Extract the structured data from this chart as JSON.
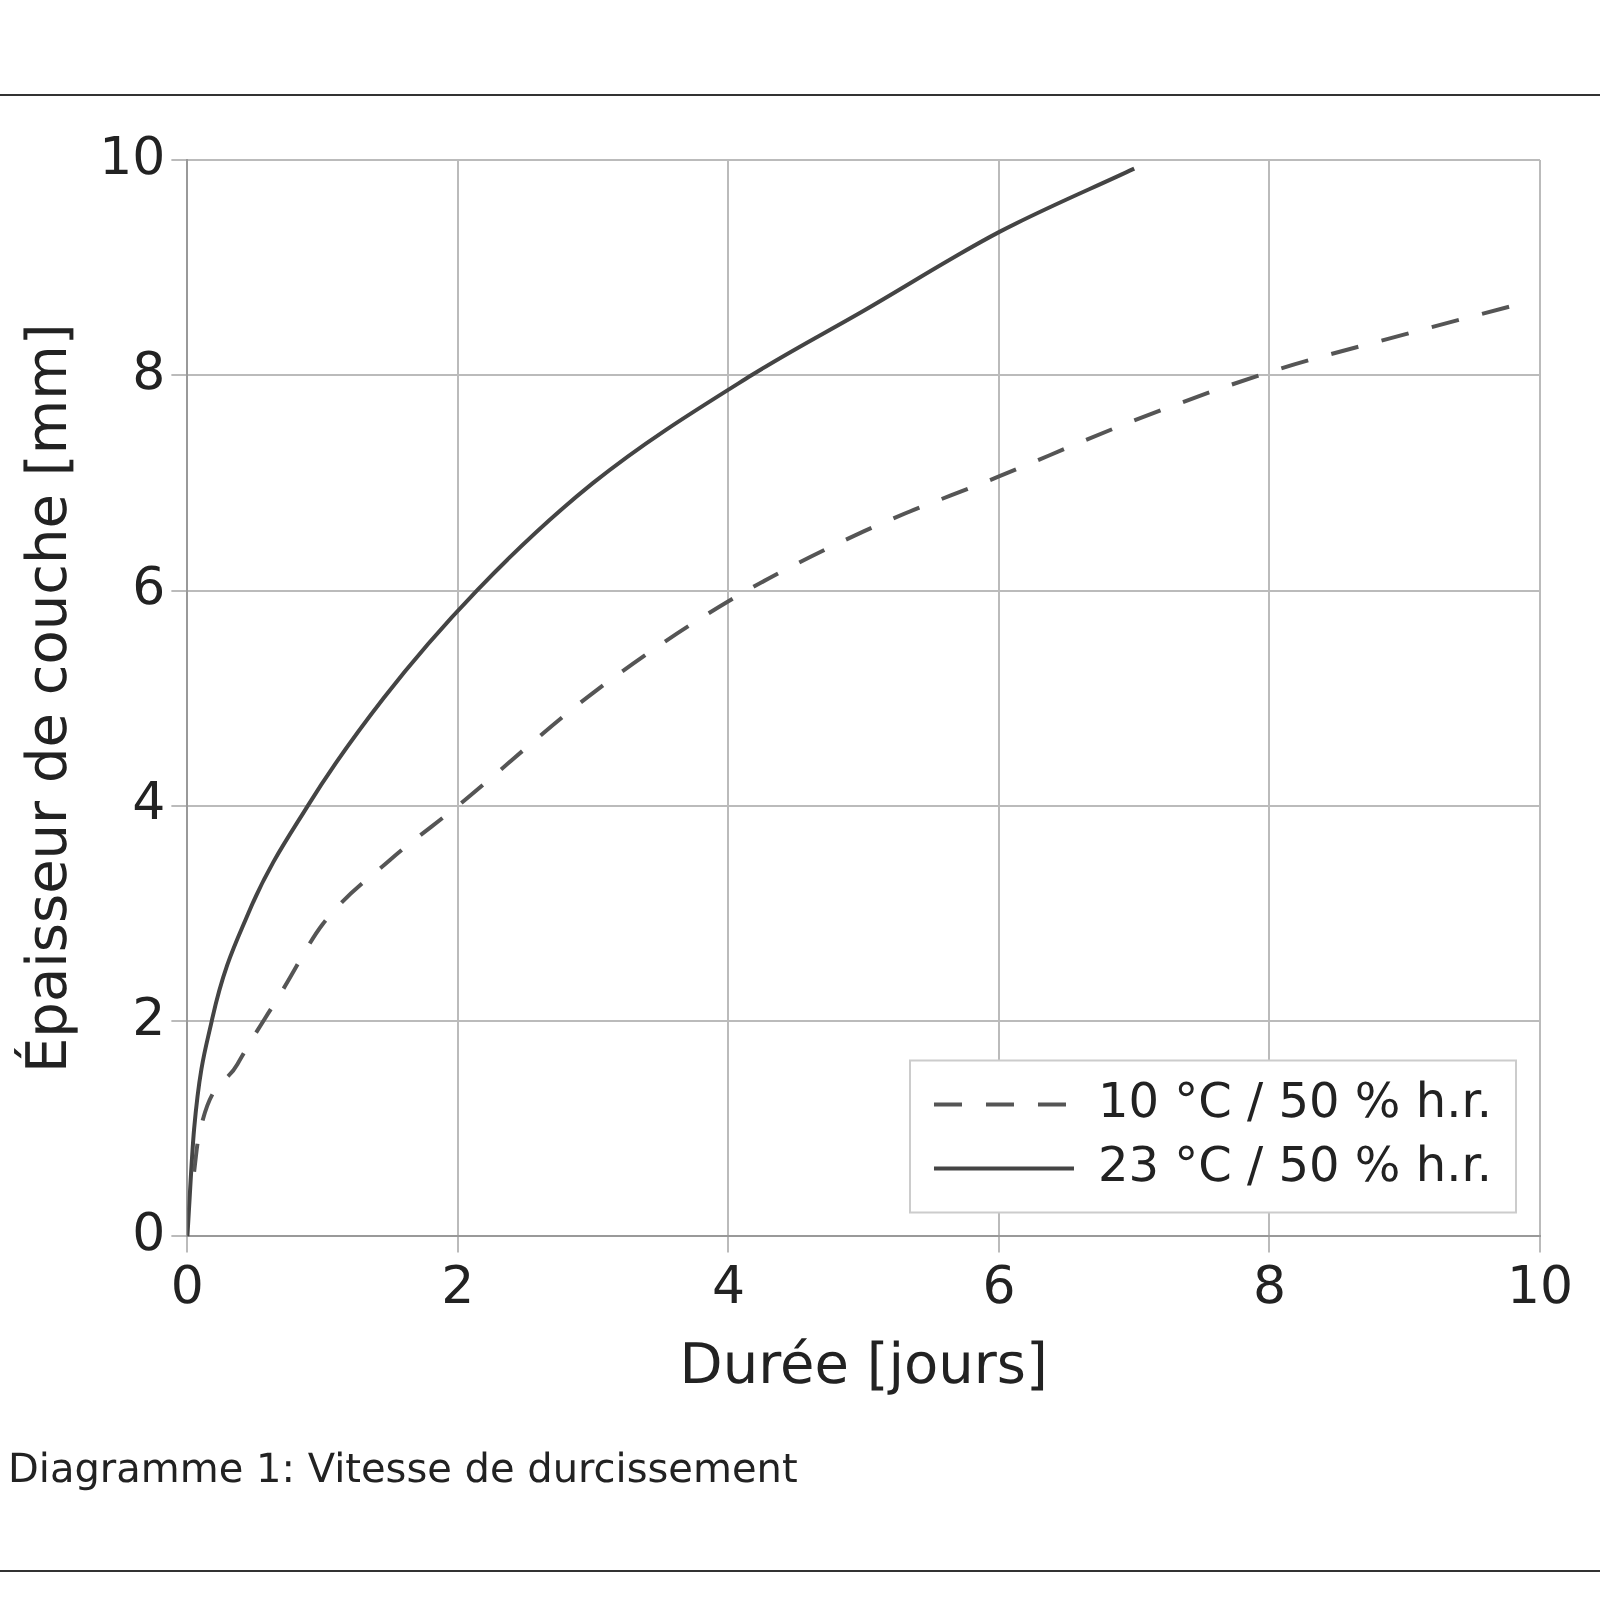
{
  "chart_data": {
    "type": "line",
    "xlabel": "Durée [jours]",
    "ylabel": "Épaisseur de couche [mm]",
    "xlim": [
      0,
      10
    ],
    "ylim": [
      0,
      10
    ],
    "xticks": [
      0,
      2,
      4,
      6,
      8,
      10
    ],
    "yticks": [
      0,
      2,
      4,
      6,
      8,
      10
    ],
    "grid": true,
    "legend": "bottom right",
    "marker": "none",
    "series": [
      {
        "name": "10 °C / 50 % h.r.",
        "color": "#555555",
        "line_style": "dashed",
        "x": [
          0.05,
          0.08,
          0.37,
          0.71,
          1,
          1.5,
          2,
          3,
          4,
          5,
          6,
          7,
          8,
          9,
          9.78
        ],
        "values": [
          0.6,
          0.9,
          1.6,
          2.3,
          2.9,
          3.5,
          4,
          5.05,
          5.9,
          6.55,
          7.06,
          7.58,
          8.03,
          8.38,
          8.64
        ]
      },
      {
        "name": "23 °C / 50 % h.r.",
        "color": "#444444",
        "line_style": "solid",
        "x": [
          0,
          0.05,
          0.18,
          0.45,
          0.89,
          1.45,
          2.14,
          3,
          4.17,
          5,
          6,
          7
        ],
        "values": [
          0,
          1,
          2,
          3,
          4,
          5,
          6,
          7,
          8,
          8.6,
          9.33,
          9.92
        ]
      }
    ],
    "annotations": [
      "Diagramme 1: Vitesse de durcissement"
    ]
  }
}
